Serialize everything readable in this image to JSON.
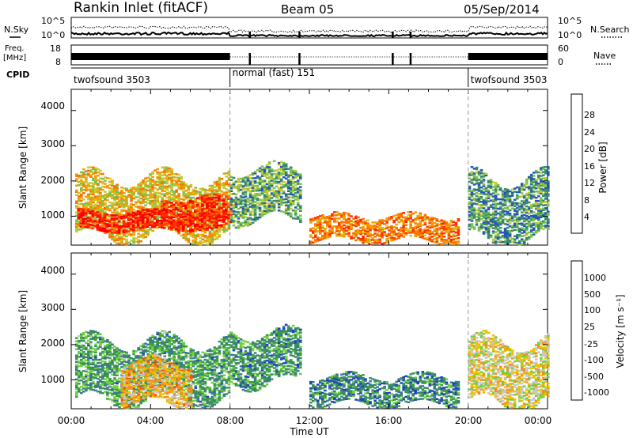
{
  "header": {
    "station": "Rankin Inlet (fitACF)",
    "beam": "Beam 05",
    "date": "05/Sep/2014"
  },
  "top_panels": {
    "nsky_label": "N.Sky",
    "nsearch_label": "N.Search",
    "noise_ticks": [
      "10^5",
      "10^0"
    ],
    "freq_label": "Freq.",
    "freq_unit": "[MHz]",
    "freq_ticks": [
      "18",
      "8"
    ],
    "nave_label": "Nave",
    "nave_ticks": [
      "60",
      "0"
    ],
    "cpid_label": "CPID",
    "cpid_segments": [
      {
        "name": "twofsound 3503",
        "start_h": 0,
        "end_h": 8
      },
      {
        "name": "normal (fast) 151",
        "start_h": 8,
        "end_h": 20
      },
      {
        "name": "twofsound 3503",
        "start_h": 20,
        "end_h": 24
      }
    ],
    "frequency_gaps_h": [
      9.0,
      11.5,
      16.2,
      17.1
    ]
  },
  "x_axis": {
    "title": "Time UT",
    "ticks": [
      "00:00",
      "04:00",
      "08:00",
      "12:00",
      "16:00",
      "20:00",
      "00:00"
    ],
    "range_h": [
      0,
      24
    ]
  },
  "power_panel": {
    "ylabel": "Slant Range [km]",
    "yticks": [
      "4000",
      "3000",
      "2000",
      "1000"
    ],
    "colorbar_label": "Power [dB]",
    "colorbar_ticks": [
      "28",
      "24",
      "20",
      "16",
      "12",
      "8",
      "4"
    ],
    "colors": [
      "#0000ff",
      "#2456b8",
      "#3a8a6a",
      "#7ac050",
      "#c8c832",
      "#f0a000",
      "#ff7000",
      "#ff3000",
      "#ff0000"
    ]
  },
  "velocity_panel": {
    "ylabel": "Slant Range [km]",
    "yticks": [
      "4000",
      "3000",
      "2000",
      "1000"
    ],
    "colorbar_label": "Velocity [m s⁻¹]",
    "colorbar_ticks": [
      "1000",
      "500",
      "100",
      "25",
      "-25",
      "-100",
      "-500",
      "-1000"
    ],
    "colors": [
      "#2040c0",
      "#3a7a8a",
      "#3a9a4a",
      "#70d040",
      "#c8c8c8",
      "#f0c000",
      "#f09020",
      "#ff5000",
      "#ff0000"
    ]
  },
  "chart_data": [
    {
      "type": "heatmap",
      "title": "Power",
      "xlabel": "Time UT",
      "ylabel": "Slant Range [km]",
      "xlim_h": [
        0,
        24
      ],
      "ylim_km": [
        180,
        4600
      ],
      "clim_db": [
        0,
        30
      ],
      "regions": [
        {
          "t0": 0.2,
          "t1": 8.0,
          "r0": 400,
          "r1": 2100,
          "level": 0.55
        },
        {
          "t0": 0.3,
          "t1": 7.8,
          "r0": 600,
          "r1": 1100,
          "level": 0.9
        },
        {
          "t0": 4.5,
          "t1": 8.0,
          "r0": 800,
          "r1": 1500,
          "level": 0.85
        },
        {
          "t0": 8.0,
          "t1": 11.5,
          "r0": 900,
          "r1": 2300,
          "level": 0.35
        },
        {
          "t0": 12.0,
          "t1": 19.5,
          "r0": 300,
          "r1": 1000,
          "level": 0.7
        },
        {
          "t0": 20.0,
          "t1": 24.0,
          "r0": 300,
          "r1": 2100,
          "level": 0.3
        }
      ]
    },
    {
      "type": "heatmap",
      "title": "Velocity",
      "xlabel": "Time UT",
      "ylabel": "Slant Range [km]",
      "xlim_h": [
        0,
        24
      ],
      "ylim_km": [
        180,
        4600
      ],
      "clim_ms": [
        -1000,
        1000
      ],
      "regions": [
        {
          "t0": 0.2,
          "t1": 8.0,
          "r0": 400,
          "r1": 2100,
          "level": 0.72
        },
        {
          "t0": 2.5,
          "t1": 6.0,
          "r0": 300,
          "r1": 1500,
          "level": 0.35
        },
        {
          "t0": 8.0,
          "t1": 11.5,
          "r0": 900,
          "r1": 2300,
          "level": 0.75
        },
        {
          "t0": 12.0,
          "t1": 19.5,
          "r0": 300,
          "r1": 1100,
          "level": 0.8
        },
        {
          "t0": 20.0,
          "t1": 24.0,
          "r0": 300,
          "r1": 2100,
          "level": 0.45
        }
      ]
    }
  ]
}
